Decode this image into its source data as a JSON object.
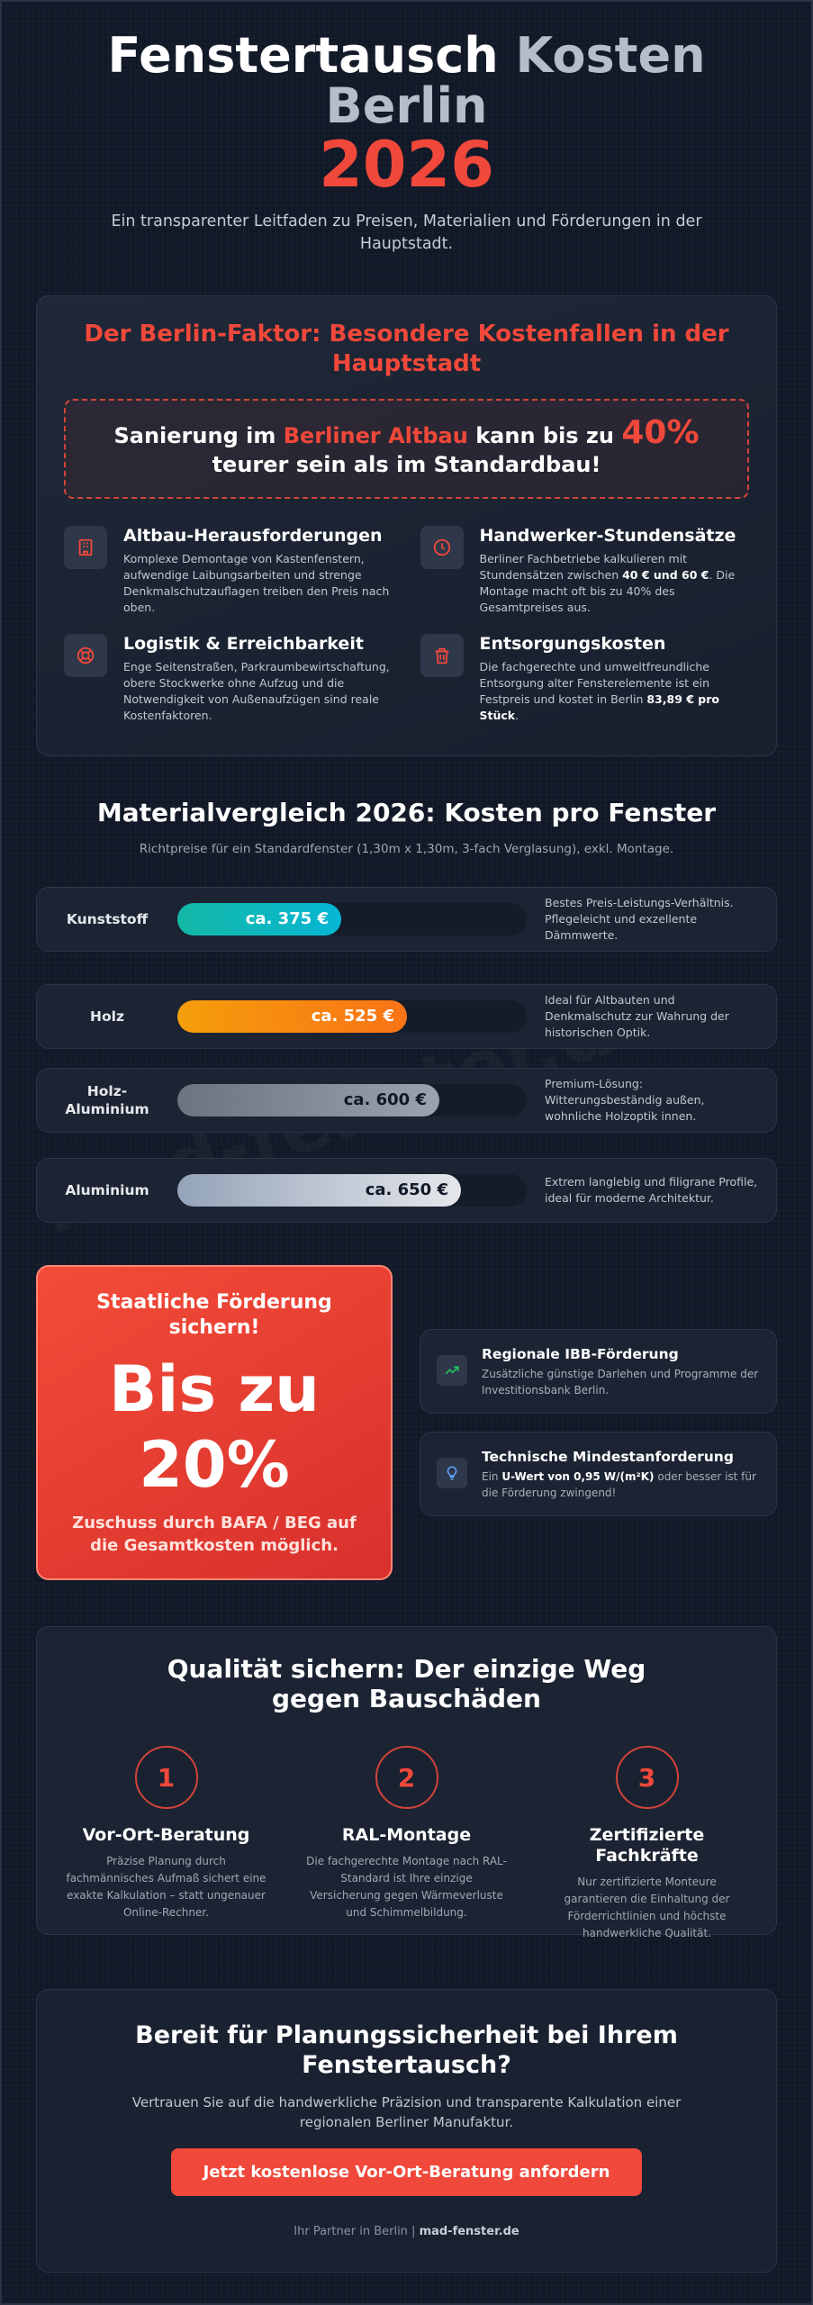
{
  "hero": {
    "title_a": "Fenstertausch",
    "title_b": "Kosten",
    "title_c": "Berlin",
    "year": "2026",
    "subtitle": "Ein transparenter Leitfaden zu Preisen, Materialien und Förderungen in der Hauptstadt."
  },
  "berlin": {
    "title": "Der Berlin-Faktor: Besondere Kostenfallen in der Hauptstadt",
    "alert_pre": "Sanierung im ",
    "alert_red": "Berliner Altbau",
    "alert_mid": " kann bis zu ",
    "alert_pct": "40%",
    "alert_post": " teurer sein als im Standardbau!",
    "features": [
      {
        "icon": "building-icon",
        "title": "Altbau-Herausforderungen",
        "text": "Komplexe Demontage von Kastenfenstern, aufwendige Laibungsarbeiten und strenge Denkmalschutzauflagen treiben den Preis nach oben."
      },
      {
        "icon": "clock-icon",
        "title": "Handwerker-Stundensätze",
        "text_pre": "Berliner Fachbetriebe kalkulieren mit Stundensätzen zwischen ",
        "text_bold": "40 € und 60 €",
        "text_post": ". Die Montage macht oft bis zu 40% des Gesamtpreises aus."
      },
      {
        "icon": "lifebuoy-icon",
        "title": "Logistik & Erreichbarkeit",
        "text": "Enge Seitenstraßen, Parkraumbewirtschaftung, obere Stockwerke ohne Aufzug und die Notwendigkeit von Außenaufzügen sind reale Kostenfaktoren."
      },
      {
        "icon": "trash-icon",
        "title": "Entsorgungskosten",
        "text_pre": "Die fachgerechte und umweltfreundliche Entsorgung alter Fensterelemente ist ein Festpreis und kostet in Berlin ",
        "text_bold": "83,89 € pro Stück",
        "text_post": "."
      }
    ]
  },
  "material": {
    "title": "Materialvergleich 2026: Kosten pro Fenster",
    "subtitle": "Richtpreise für ein Standardfenster (1,30m x 1,30m, 3-fach Verglasung), exkl. Montage.",
    "rows": [
      {
        "name": "Kunststoff",
        "label": "ca. 375 €",
        "value": 375,
        "color_a": "#14b8a6",
        "color_b": "#06b6d4",
        "text_color": "#ffffff",
        "desc": "Bestes Preis-Leistungs-Verhältnis. Pflegeleicht und exzellente Dämmwerte."
      },
      {
        "name": "Holz",
        "label": "ca. 525 €",
        "value": 525,
        "color_a": "#f59e0b",
        "color_b": "#f97316",
        "text_color": "#ffffff",
        "desc": "Ideal für Altbauten und Denkmalschutz zur Wahrung der historischen Optik."
      },
      {
        "name": "Holz-\nAluminium",
        "label": "ca. 600 €",
        "value": 600,
        "color_a": "#6b7280",
        "color_b": "#9ca3af",
        "text_color": "#111827",
        "desc": "Premium-Lösung: Witterungsbeständig außen, wohnliche Holzoptik innen."
      },
      {
        "name": "Aluminium",
        "label": "ca. 650 €",
        "value": 650,
        "color_a": "#94a3b8",
        "color_b": "#e5e7eb",
        "text_color": "#111827",
        "desc": "Extrem langlebig und filigrane Profile, ideal für moderne Architektur."
      }
    ],
    "max_value": 800
  },
  "funding": {
    "title": "Staatliche Förderung sichern!",
    "big_a": "Bis zu",
    "big_b": "20%",
    "sub": "Zuschuss durch BAFA / BEG auf die Gesamtkosten möglich.",
    "cards": [
      {
        "icon": "trending-up-icon",
        "title": "Regionale IBB-Förderung",
        "text": "Zusätzliche günstige Darlehen und Programme der Investitionsbank Berlin."
      },
      {
        "icon": "lightbulb-icon",
        "title": "Technische Mindestanforderung",
        "text_pre": "Ein ",
        "text_bold": "U-Wert von 0,95 W/(m²K)",
        "text_post": " oder besser ist für die Förderung zwingend!"
      }
    ]
  },
  "quality": {
    "title": "Qualität sichern: Der einzige Weg gegen Bauschäden",
    "steps": [
      {
        "num": "1",
        "title": "Vor-Ort-Beratung",
        "text": "Präzise Planung durch fachmännisches Aufmaß sichert eine exakte Kalkulation – statt ungenauer Online-Rechner."
      },
      {
        "num": "2",
        "title": "RAL-Montage",
        "text": "Die fachgerechte Montage nach RAL-Standard ist Ihre einzige Versicherung gegen Wärmeverluste und Schimmelbildung."
      },
      {
        "num": "3",
        "title": "Zertifizierte Fachkräfte",
        "text": "Nur zertifizierte Monteure garantieren die Einhaltung der Förderrichtlinien und höchste handwerkliche Qualität."
      }
    ]
  },
  "cta": {
    "title": "Bereit für Planungssicherheit bei Ihrem Fenstertausch?",
    "text": "Vertrauen Sie auf die handwerkliche Präzision und transparente Kalkulation einer regionalen Berliner Manufaktur.",
    "button": "Jetzt kostenlose Vor-Ort-Beratung anfordern",
    "foot_pre": "Ihr Partner in Berlin | ",
    "foot_brand": "mad-fenster.de"
  },
  "watermark": "mad-fenster.de",
  "colors": {
    "accent": "#f0483a",
    "background": "#111827",
    "card": "#1c2433"
  }
}
